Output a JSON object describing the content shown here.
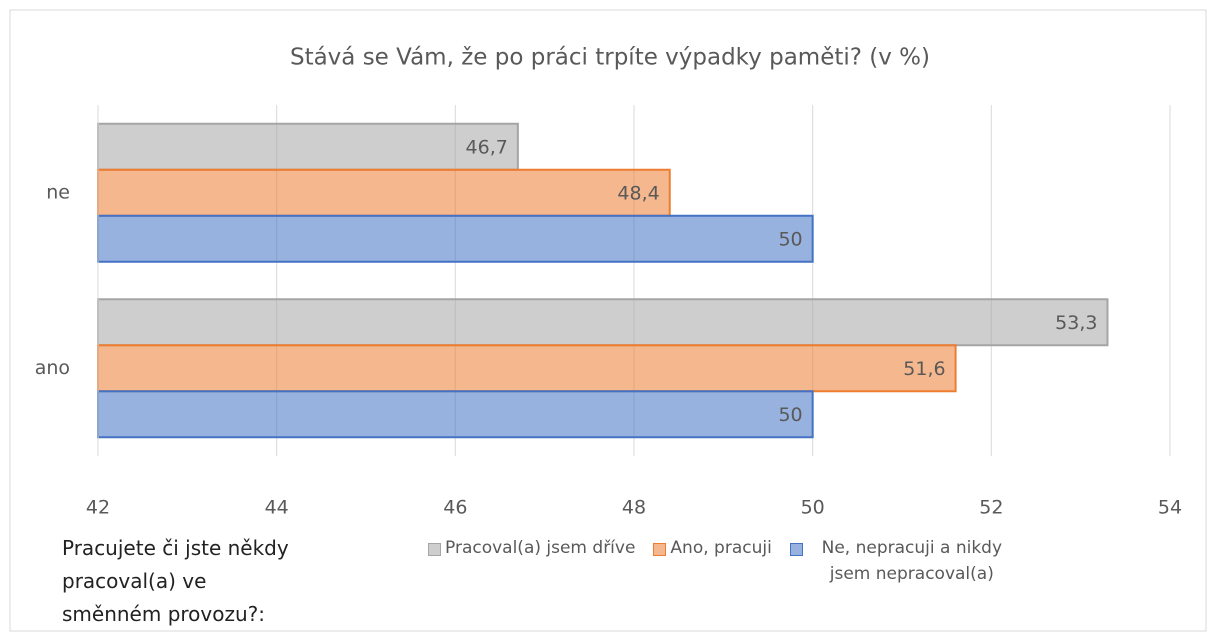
{
  "chart_data": {
    "type": "bar",
    "orientation": "horizontal",
    "title": "Stává se Vám, že po práci trpíte výpadky paměti? (v %)",
    "categories": [
      "ne",
      "ano"
    ],
    "series": [
      {
        "name": "Pracoval(a) jsem dříve",
        "color": "#a5a5a5",
        "values": [
          46.7,
          53.3
        ],
        "value_labels": [
          "46,7",
          "53,3"
        ]
      },
      {
        "name": "Ano, pracuji",
        "color": "#ed7d31",
        "values": [
          48.4,
          51.6
        ],
        "value_labels": [
          "48,4",
          "51,6"
        ]
      },
      {
        "name": "Ne, nepracuji a nikdy jsem nepracoval(a)",
        "color": "#4472c4",
        "values": [
          50,
          50
        ],
        "value_labels": [
          "50",
          "50"
        ]
      }
    ],
    "legend_title": "Pracujete či jste někdy pracoval(a) ve směnném provozu?:",
    "xlim": [
      42,
      54
    ],
    "xticks": [
      42,
      44,
      46,
      48,
      50,
      52,
      54
    ],
    "grid": true
  }
}
